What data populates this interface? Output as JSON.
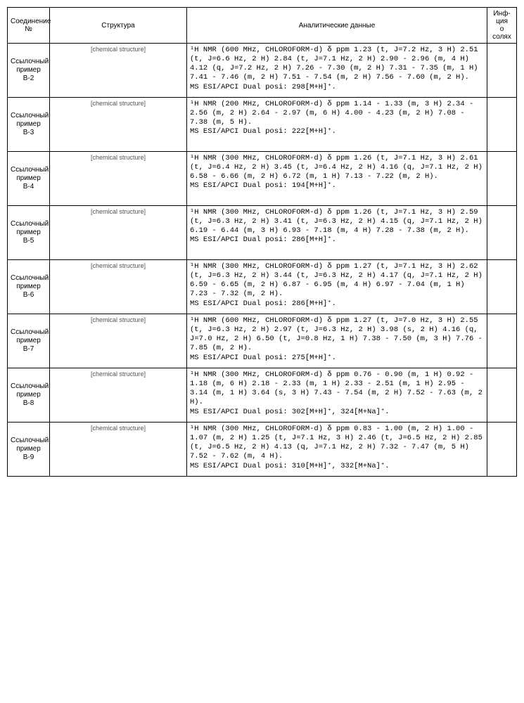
{
  "columns": {
    "compound_no": "Соединение\n№",
    "structure": "Структура",
    "analytical_data": "Аналитические данные",
    "salt_info": "Инф-ция\nо солях"
  },
  "rows": [
    {
      "id": "Ссылочный\nпример\nB-2",
      "structure_desc": "[chemical structure]",
      "data": "¹H NMR (600 MHz, CHLOROFORM-d) δ ppm 1.23 (t, J=7.2 Hz, 3 H) 2.51 (t, J=6.6 Hz, 2 H) 2.84 (t, J=7.1 Hz, 2 H) 2.90 - 2.96 (m, 4 H) 4.12 (q, J=7.2 Hz, 2 H) 7.26 - 7.30 (m, 2 H) 7.31 - 7.35 (m, 1 H) 7.41 - 7.46 (m, 2 H) 7.51 - 7.54 (m, 2 H) 7.56 - 7.60 (m, 2 H).\nMS ESI/APCI Dual posi: 298[M+H]⁺.",
      "salt": ""
    },
    {
      "id": "Ссылочный\nпример\nB-3",
      "structure_desc": "[chemical structure]",
      "data": "¹H NMR (200 MHz, CHLOROFORM-d) δ ppm 1.14 - 1.33 (m, 3 H) 2.34 - 2.56 (m, 2 H) 2.64 - 2.97 (m, 6 H) 4.00 - 4.23 (m, 2 H) 7.08 - 7.38 (m, 5 H).\nMS ESI/APCI Dual posi: 222[M+H]⁺.",
      "salt": ""
    },
    {
      "id": "Ссылочный\nпример\nB-4",
      "structure_desc": "[chemical structure]",
      "data": "¹H NMR (300 MHz, CHLOROFORM-d) δ ppm 1.26 (t, J=7.1 Hz, 3 H) 2.61 (t, J=6.4 Hz, 2 H) 3.45 (t, J=6.4 Hz, 2 H) 4.16 (q, J=7.1 Hz, 2 H) 6.58 - 6.66 (m, 2 H) 6.72 (m, 1 H) 7.13 - 7.22 (m, 2 H).\nMS ESI/APCI Dual posi: 194[M+H]⁺.",
      "salt": ""
    },
    {
      "id": "Ссылочный\nпример\nB-5",
      "structure_desc": "[chemical structure]",
      "data": "¹H NMR (300 MHz, CHLOROFORM-d) δ ppm 1.26 (t, J=7.1 Hz, 3 H) 2.59 (t, J=6.3 Hz, 2 H) 3.41 (t, J=6.3 Hz, 2 H) 4.15 (q, J=7.1 Hz, 2 H) 6.19 - 6.44 (m, 3 H) 6.93 - 7.18 (m, 4 H) 7.28 - 7.38 (m, 2 H).\nMS ESI/APCI Dual posi: 286[M+H]⁺.",
      "salt": ""
    },
    {
      "id": "Ссылочный\nпример\nB-6",
      "structure_desc": "[chemical structure]",
      "data": "¹H NMR (300 MHz, CHLOROFORM-d) δ ppm 1.27 (t, J=7.1 Hz, 3 H) 2.62 (t, J=6.3 Hz, 2 H) 3.44 (t, J=6.3 Hz, 2 H) 4.17 (q, J=7.1 Hz, 2 H) 6.59 - 6.65 (m, 2 H) 6.87 - 6.95 (m, 4 H) 6.97 - 7.04 (m, 1 H) 7.23 - 7.32 (m, 2 H).\nMS ESI/APCI Dual posi: 286[M+H]⁺.",
      "salt": ""
    },
    {
      "id": "Ссылочный\nпример\nB-7",
      "structure_desc": "[chemical structure]",
      "data": "¹H NMR (600 MHz, CHLOROFORM-d) δ ppm 1.27 (t, J=7.0 Hz, 3 H) 2.55 (t, J=6.3 Hz, 2 H) 2.97 (t, J=6.3 Hz, 2 H) 3.98 (s, 2 H) 4.16 (q, J=7.0 Hz, 2 H) 6.50 (t, J=0.8 Hz, 1 H) 7.38 - 7.50 (m, 3 H) 7.76 - 7.85 (m, 2 H).\nMS ESI/APCI Dual posi: 275[M+H]⁺.",
      "salt": ""
    },
    {
      "id": "Ссылочный\nпример\nB-8",
      "structure_desc": "[chemical structure]",
      "data": "¹H NMR (300 MHz, CHLOROFORM-d) δ ppm 0.76 - 0.90 (m, 1 H) 0.92 - 1.18 (m, 6 H) 2.18 - 2.33 (m, 1 H) 2.33 - 2.51 (m, 1 H) 2.95 - 3.14 (m, 1 H) 3.64 (s, 3 H) 7.43 - 7.54 (m, 2 H) 7.52 - 7.63 (m, 2 H).\nMS ESI/APCI Dual posi: 302[M+H]⁺, 324[M+Na]⁺.",
      "salt": ""
    },
    {
      "id": "Ссылочный\nпример\nB-9",
      "structure_desc": "[chemical structure]",
      "data": "¹H NMR (300 MHz, CHLOROFORM-d) δ ppm 0.83 - 1.00 (m, 2 H) 1.00 - 1.07 (m, 2 H) 1.25 (t, J=7.1 Hz, 3 H) 2.46 (t, J=6.5 Hz, 2 H) 2.85 (t, J=6.5 Hz, 2 H) 4.13 (q, J=7.1 Hz, 2 H) 7.32 - 7.47 (m, 5 H) 7.52 - 7.62 (m, 4 H).\nMS ESI/APCI Dual posi: 310[M+H]⁺, 332[M+Na]⁺.",
      "salt": ""
    }
  ]
}
